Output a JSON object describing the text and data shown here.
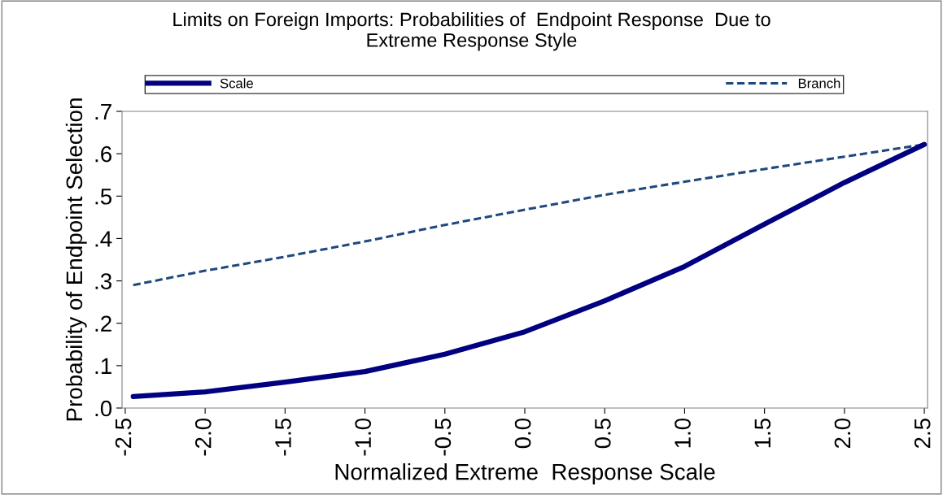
{
  "chart_data": {
    "type": "line",
    "title": "Limits on Foreign Imports: Probabilities of  Endpoint Response  Due to\nExtreme Response Style",
    "xlabel": "Normalized Extreme  Response Scale",
    "ylabel": "Probability of Endpoint Selection",
    "x": [
      -2.45,
      -2.0,
      -1.5,
      -1.0,
      -0.5,
      0.0,
      0.5,
      1.0,
      1.5,
      2.0,
      2.5
    ],
    "series": [
      {
        "name": "Scale",
        "color": "#000080",
        "values": [
          0.027,
          0.038,
          0.061,
          0.086,
          0.127,
          0.18,
          0.253,
          0.334,
          0.434,
          0.532,
          0.622
        ],
        "line_style": "solid"
      },
      {
        "name": "Branch",
        "color": "#1f497d",
        "values": [
          0.29,
          0.324,
          0.357,
          0.393,
          0.432,
          0.468,
          0.503,
          0.534,
          0.564,
          0.593,
          0.622
        ],
        "line_style": "dashed"
      }
    ],
    "xlim": [
      -2.52,
      2.52
    ],
    "ylim": [
      0,
      0.7
    ],
    "xticks": [
      {
        "value": -2.5,
        "label": "-2.5"
      },
      {
        "value": -2.0,
        "label": "-2.0"
      },
      {
        "value": -1.5,
        "label": "-1.5"
      },
      {
        "value": -1.0,
        "label": "-1.0"
      },
      {
        "value": -0.5,
        "label": "-0.5"
      },
      {
        "value": 0.0,
        "label": "0.0"
      },
      {
        "value": 0.5,
        "label": "0.5"
      },
      {
        "value": 1.0,
        "label": "1.0"
      },
      {
        "value": 1.5,
        "label": "1.5"
      },
      {
        "value": 2.0,
        "label": "2.0"
      },
      {
        "value": 2.5,
        "label": "2.5"
      }
    ],
    "yticks": [
      {
        "value": 0,
        "label": ".0"
      },
      {
        "value": 0.1,
        "label": ".1"
      },
      {
        "value": 0.2,
        "label": ".2"
      },
      {
        "value": 0.3,
        "label": ".3"
      },
      {
        "value": 0.4,
        "label": ".4"
      },
      {
        "value": 0.5,
        "label": ".5"
      },
      {
        "value": 0.6,
        "label": ".6"
      },
      {
        "value": 0.7,
        "label": ".7"
      }
    ],
    "grid": false,
    "legend": "top",
    "marker": "none"
  }
}
